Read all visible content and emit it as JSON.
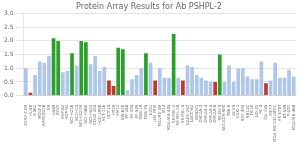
{
  "chart_data": {
    "type": "bar",
    "title": "Protein Array Results for Ab PSHPL-2",
    "categories": [
      "CCRF-CEM",
      "HL-60",
      "K-562",
      "MOLT-4",
      "RPMI-8226",
      "SR",
      "A549",
      "EKVX",
      "HOP-62",
      "HOP-92",
      "NCI-H226",
      "NCI-H23",
      "NCI-H322M",
      "NCI-H460",
      "NCI-H522",
      "COLO 205",
      "HCC-2998",
      "HCT-116",
      "HCT-15",
      "HT29",
      "KM12",
      "SW-620",
      "SF-268",
      "SF-295",
      "SF-539",
      "SNB-19",
      "SNB-75",
      "U251",
      "LOX IMVI",
      "MALME-3M",
      "M14",
      "MDA-MB-435",
      "SK-MEL-2",
      "SK-MEL-28",
      "SK-MEL-5",
      "UACC-257",
      "UACC-62",
      "IGROV1",
      "OVCAR-3",
      "OVCAR-4",
      "OVCAR-5",
      "OVCAR-8",
      "SK-OV-3",
      "NCI/ADR-RES",
      "786-0",
      "ACHN",
      "CAKI-1",
      "RXF 393",
      "SN12C",
      "TK-10",
      "UO-31",
      "PC-3",
      "DU-145",
      "MCF7",
      "MDA-MB-231/ATCC",
      "HS 578T",
      "BT-549",
      "T-47D",
      "MDA-MB-468"
    ],
    "values": [
      1.0,
      0.1,
      0.75,
      1.25,
      1.2,
      1.45,
      2.1,
      2.0,
      0.85,
      0.9,
      1.55,
      1.1,
      2.0,
      1.95,
      1.15,
      1.45,
      0.9,
      1.05,
      0.55,
      0.35,
      1.75,
      1.7,
      0.2,
      0.6,
      0.75,
      1.0,
      1.55,
      1.2,
      0.55,
      1.0,
      0.65,
      0.65,
      2.25,
      0.65,
      0.55,
      1.1,
      1.05,
      0.75,
      0.65,
      0.55,
      0.5,
      0.5,
      1.5,
      0.5,
      1.1,
      0.5,
      1.0,
      1.0,
      0.7,
      0.6,
      0.6,
      1.25,
      0.45,
      0.55,
      1.2,
      0.65,
      0.65,
      0.95,
      0.7
    ],
    "colors": [
      "#aec6e8",
      "#c0392b",
      "#aec6e8",
      "#aec6e8",
      "#aec6e8",
      "#aec6e8",
      "#2ca02c",
      "#2ca02c",
      "#aec6e8",
      "#aec6e8",
      "#2ca02c",
      "#aec6e8",
      "#2ca02c",
      "#2ca02c",
      "#aec6e8",
      "#aec6e8",
      "#aec6e8",
      "#aec6e8",
      "#c0392b",
      "#c0392b",
      "#2ca02c",
      "#2ca02c",
      "#aec6e8",
      "#aec6e8",
      "#aec6e8",
      "#aec6e8",
      "#2ca02c",
      "#aec6e8",
      "#c0392b",
      "#aec6e8",
      "#aec6e8",
      "#aec6e8",
      "#2ca02c",
      "#aec6e8",
      "#c0392b",
      "#aec6e8",
      "#aec6e8",
      "#aec6e8",
      "#aec6e8",
      "#aec6e8",
      "#aec6e8",
      "#c0392b",
      "#2ca02c",
      "#aec6e8",
      "#aec6e8",
      "#aec6e8",
      "#aec6e8",
      "#aec6e8",
      "#aec6e8",
      "#aec6e8",
      "#aec6e8",
      "#aec6e8",
      "#c0392b",
      "#aec6e8",
      "#aec6e8",
      "#aec6e8",
      "#aec6e8",
      "#aec6e8",
      "#aec6e8"
    ],
    "ylim": [
      0,
      3.0
    ],
    "yticks": [
      {
        "value": 0.0,
        "label": "0.0"
      },
      {
        "value": 0.5,
        "label": "0.5"
      },
      {
        "value": 1.0,
        "label": "1.0"
      },
      {
        "value": 1.5,
        "label": "1.5"
      },
      {
        "value": 2.0,
        "label": "2.0"
      },
      {
        "value": 2.5,
        "label": "2.5"
      },
      {
        "value": 3.0,
        "label": "3.0"
      }
    ],
    "grid": true
  }
}
